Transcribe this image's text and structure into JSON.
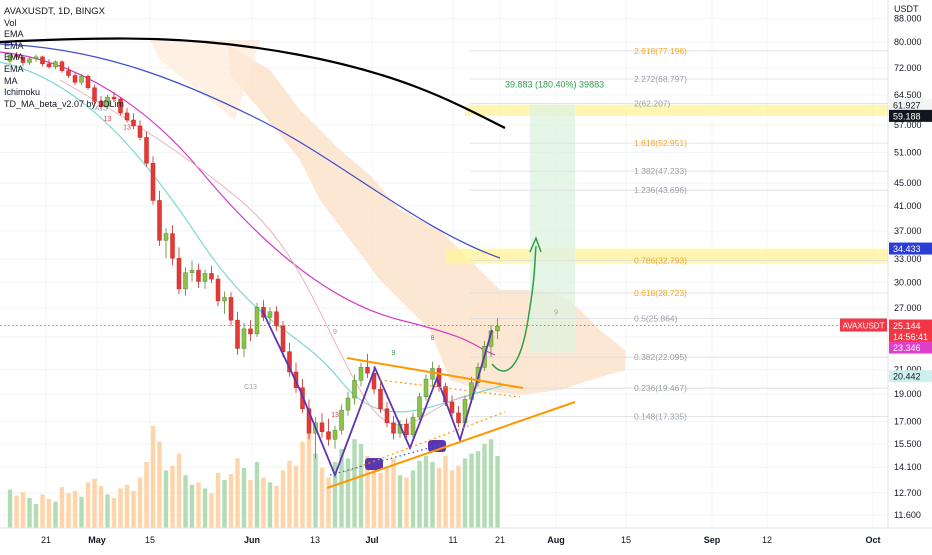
{
  "chart_data": {
    "type": "candlestick",
    "symbol": "AVAXUSDT, 1D, BINGX",
    "currency_label": "USDT",
    "indicator_legend": [
      "Vol",
      "EMA",
      "EMA",
      "EMA",
      "EMA",
      "MA",
      "Ichimoku",
      "TD_MA_beta_v2.07 by JDLim"
    ],
    "price_axis_ticks": [
      "88.000",
      "80.000",
      "72.000",
      "64.500",
      "57.000",
      "51.000",
      "45.000",
      "41.000",
      "37.000",
      "33.000",
      "30.000",
      "27.000",
      "24.000",
      "21.000",
      "19.000",
      "17.000",
      "15.500",
      "14.100",
      "12.700",
      "11.600"
    ],
    "time_axis_labels": [
      "21",
      "May",
      "15",
      "Jun",
      "13",
      "Jul",
      "11",
      "21",
      "Aug",
      "15",
      "Sep",
      "12",
      "Oct"
    ],
    "fib_levels": [
      {
        "label": "2.618(77.196)",
        "price": 77.196,
        "color": "#f5a623"
      },
      {
        "label": "2.272(68.797)",
        "price": 68.797,
        "color": "#9aa0a8"
      },
      {
        "label": "2(62.207)",
        "price": 62.207,
        "color": "#9aa0a8"
      },
      {
        "label": "1.618(52.951)",
        "price": 52.951,
        "color": "#f5a623"
      },
      {
        "label": "1.382(47.233)",
        "price": 47.233,
        "color": "#9aa0a8"
      },
      {
        "label": "1.236(43.696)",
        "price": 43.696,
        "color": "#9aa0a8"
      },
      {
        "label": "0.786(32.793)",
        "price": 32.793,
        "color": "#f5a623"
      },
      {
        "label": "0.618(28.723)",
        "price": 28.723,
        "color": "#f5a623"
      },
      {
        "label": "0.5(25.864)",
        "price": 25.864,
        "color": "#9aa0a8"
      },
      {
        "label": "0.382(22.095)",
        "price": 22.095,
        "color": "#9aa0a8"
      },
      {
        "label": "0.236(19.467)",
        "price": 19.467,
        "color": "#9aa0a8"
      },
      {
        "label": "0.148(17.335)",
        "price": 17.335,
        "color": "#9aa0a8"
      }
    ],
    "price_badges": [
      {
        "label": "61.927",
        "price": 61.927,
        "bg": "#f4f4f4",
        "fg": "#131722"
      },
      {
        "label": "59.188",
        "price": 59.188,
        "bg": "#131722",
        "fg": "#ffffff"
      },
      {
        "label": "34.433",
        "price": 34.433,
        "bg": "#2a3ed6",
        "fg": "#ffffff"
      },
      {
        "label": "25.144",
        "price": 25.144,
        "bg": "#f23645",
        "fg": "#ffffff"
      },
      {
        "label": "14:56:41",
        "price": 24.2,
        "bg": "#f23645",
        "fg": "#ffffff"
      },
      {
        "label": "23.346",
        "price": 23.346,
        "bg": "#e040c9",
        "fg": "#ffffff"
      },
      {
        "label": "20.442",
        "price": 20.442,
        "bg": "#cfeff0",
        "fg": "#131722"
      }
    ],
    "symbol_badge": "AVAXUSDT",
    "last_price": 25.144,
    "projection": {
      "label": "39.883 (180.40%) 39883",
      "color": "#2e9e49"
    },
    "td_counts": [
      {
        "text": "9",
        "i": 23,
        "price": 39.5,
        "color": "#f23645"
      },
      {
        "text": "13",
        "i": 18,
        "price": 56.0,
        "color": "#f23645"
      },
      {
        "text": "13",
        "i": 15,
        "price": 58.0,
        "color": "#f23645"
      },
      {
        "text": "13",
        "i": 50,
        "price": 17.3,
        "color": "#f23645"
      },
      {
        "text": "A13",
        "i": 14,
        "price": 60.5,
        "color": "#9aa0a8"
      },
      {
        "text": "C13",
        "i": 37,
        "price": 19.4,
        "color": "#9aa0a8"
      },
      {
        "text": "9",
        "i": 59,
        "price": 22.3,
        "color": "#2e9e49"
      },
      {
        "text": "8",
        "i": 65,
        "price": 23.7,
        "color": "#2e9e49"
      },
      {
        "text": "9",
        "i": 84,
        "price": 26.3,
        "color": "#9aa0a8"
      },
      {
        "text": "9",
        "i": 50,
        "price": 24.3,
        "color": "#9aa0a8"
      }
    ],
    "candles": [
      [
        74.0,
        76.6,
        73.2,
        75.8
      ],
      [
        75.8,
        76.8,
        74.5,
        75.2
      ],
      [
        75.2,
        75.9,
        72.6,
        73.6
      ],
      [
        73.6,
        75.4,
        72.9,
        74.7
      ],
      [
        74.7,
        76.1,
        73.8,
        75.3
      ],
      [
        75.3,
        75.7,
        72.4,
        73.2
      ],
      [
        73.2,
        74.6,
        71.8,
        72.3
      ],
      [
        72.3,
        74.2,
        71.6,
        73.8
      ],
      [
        73.8,
        74.3,
        70.6,
        71.2
      ],
      [
        71.2,
        72.4,
        69.1,
        69.8
      ],
      [
        69.8,
        70.6,
        67.2,
        67.9
      ],
      [
        67.9,
        70.2,
        67.1,
        69.6
      ],
      [
        69.6,
        70.1,
        65.8,
        66.4
      ],
      [
        66.4,
        67.2,
        62.1,
        62.8
      ],
      [
        62.8,
        64.2,
        60.8,
        61.5
      ],
      [
        61.5,
        64.5,
        60.9,
        63.9
      ],
      [
        63.9,
        65.2,
        62.6,
        63.4
      ],
      [
        63.4,
        63.8,
        59.3,
        59.9
      ],
      [
        59.9,
        61.2,
        57.6,
        58.2
      ],
      [
        58.2,
        59.8,
        56.1,
        56.8
      ],
      [
        56.8,
        58.1,
        53.6,
        54.2
      ],
      [
        54.2,
        55.5,
        48.1,
        48.8
      ],
      [
        48.8,
        50.2,
        41.2,
        41.9
      ],
      [
        41.9,
        43.6,
        34.8,
        35.6
      ],
      [
        35.6,
        37.4,
        33.1,
        36.6
      ],
      [
        36.6,
        37.9,
        32.2,
        33.1
      ],
      [
        33.1,
        34.6,
        28.6,
        29.2
      ],
      [
        29.2,
        31.9,
        28.4,
        31.2
      ],
      [
        31.2,
        32.8,
        30.1,
        31.5
      ],
      [
        31.5,
        32.4,
        29.3,
        30.1
      ],
      [
        30.1,
        31.6,
        29.2,
        31.1
      ],
      [
        31.1,
        32.1,
        29.9,
        30.4
      ],
      [
        30.4,
        30.9,
        27.2,
        27.8
      ],
      [
        27.8,
        28.9,
        26.4,
        28.2
      ],
      [
        28.2,
        28.8,
        25.1,
        25.7
      ],
      [
        25.7,
        26.6,
        22.3,
        22.9
      ],
      [
        22.9,
        25.4,
        22.1,
        24.8
      ],
      [
        24.8,
        25.7,
        23.6,
        24.3
      ],
      [
        24.3,
        27.6,
        24.0,
        27.1
      ],
      [
        27.1,
        27.9,
        25.6,
        26.0
      ],
      [
        26.0,
        27.1,
        25.3,
        26.6
      ],
      [
        26.6,
        27.2,
        24.6,
        25.1
      ],
      [
        25.1,
        25.6,
        22.1,
        22.6
      ],
      [
        22.6,
        23.4,
        20.4,
        20.8
      ],
      [
        20.8,
        21.6,
        19.1,
        19.5
      ],
      [
        19.5,
        20.2,
        17.6,
        17.9
      ],
      [
        17.9,
        18.6,
        15.8,
        16.2
      ],
      [
        16.2,
        17.3,
        14.6,
        16.9
      ],
      [
        16.9,
        17.6,
        15.9,
        16.3
      ],
      [
        16.3,
        17.2,
        15.4,
        15.8
      ],
      [
        15.8,
        16.7,
        15.2,
        16.4
      ],
      [
        16.4,
        18.2,
        16.1,
        17.8
      ],
      [
        17.8,
        19.2,
        17.4,
        18.7
      ],
      [
        18.7,
        20.6,
        18.2,
        20.1
      ],
      [
        20.1,
        21.6,
        19.6,
        21.2
      ],
      [
        21.2,
        22.4,
        20.3,
        20.7
      ],
      [
        20.7,
        21.3,
        19.0,
        19.4
      ],
      [
        19.4,
        19.9,
        17.6,
        17.9
      ],
      [
        17.9,
        18.4,
        16.6,
        16.9
      ],
      [
        16.9,
        17.4,
        15.8,
        16.2
      ],
      [
        16.2,
        17.1,
        15.9,
        16.8
      ],
      [
        16.8,
        17.2,
        15.9,
        16.1
      ],
      [
        16.1,
        17.6,
        15.9,
        17.3
      ],
      [
        17.3,
        19.1,
        17.1,
        18.8
      ],
      [
        18.8,
        20.6,
        18.5,
        20.2
      ],
      [
        20.2,
        21.7,
        19.6,
        21.1
      ],
      [
        21.1,
        21.4,
        19.2,
        19.6
      ],
      [
        19.6,
        19.9,
        18.1,
        18.4
      ],
      [
        18.4,
        18.9,
        17.2,
        17.6
      ],
      [
        17.6,
        18.1,
        16.6,
        16.9
      ],
      [
        16.9,
        18.9,
        16.7,
        18.6
      ],
      [
        18.6,
        20.4,
        18.3,
        19.9
      ],
      [
        19.9,
        21.6,
        19.6,
        21.2
      ],
      [
        21.2,
        23.6,
        20.9,
        23.1
      ],
      [
        23.1,
        25.2,
        22.1,
        24.6
      ],
      [
        24.6,
        25.9,
        23.8,
        25.1
      ]
    ],
    "volumes": [
      0.32,
      0.27,
      0.3,
      0.25,
      0.2,
      0.28,
      0.24,
      0.22,
      0.34,
      0.29,
      0.31,
      0.26,
      0.38,
      0.41,
      0.35,
      0.28,
      0.25,
      0.33,
      0.36,
      0.31,
      0.42,
      0.55,
      0.85,
      0.72,
      0.48,
      0.52,
      0.62,
      0.44,
      0.36,
      0.38,
      0.33,
      0.29,
      0.46,
      0.4,
      0.45,
      0.58,
      0.5,
      0.4,
      0.55,
      0.42,
      0.38,
      0.35,
      0.48,
      0.56,
      0.52,
      0.72,
      0.86,
      0.62,
      0.5,
      0.42,
      0.55,
      0.66,
      0.58,
      0.74,
      0.7,
      0.6,
      0.52,
      0.46,
      0.5,
      0.58,
      0.44,
      0.42,
      0.48,
      0.56,
      0.6,
      0.55,
      0.5,
      0.6,
      0.48,
      0.52,
      0.58,
      0.62,
      0.64,
      0.7,
      0.74,
      0.6
    ],
    "y_scale": "log",
    "y_range": [
      11.0,
      95.0
    ],
    "grid": true
  }
}
